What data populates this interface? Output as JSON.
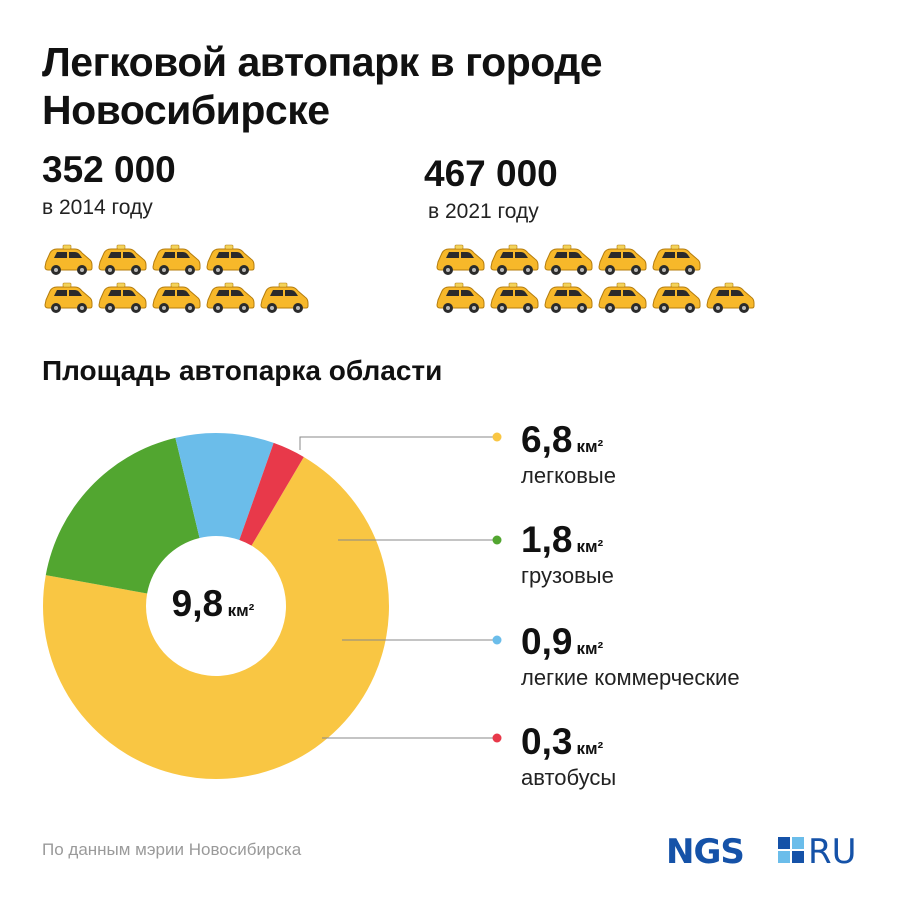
{
  "header": {
    "title": "Легковой автопарк в городе Новосибирске"
  },
  "stats": [
    {
      "value": "352 000",
      "caption": "в 2014 году"
    },
    {
      "value": "467 000",
      "caption": "в 2021 году"
    }
  ],
  "icons": {
    "car": "car-icon"
  },
  "section": {
    "title": "Площадь автопарка области"
  },
  "center": {
    "value": "9,8",
    "unit": "км²"
  },
  "chart_data": {
    "type": "pie",
    "title": "Площадь автопарка области",
    "unit": "км²",
    "total": 9.8,
    "series": [
      {
        "name": "легковые",
        "value": 6.8,
        "label": "6,8",
        "color": "#f9c643"
      },
      {
        "name": "грузовые",
        "value": 1.8,
        "label": "1,8",
        "color": "#52a630"
      },
      {
        "name": "легкие коммерческие",
        "value": 0.9,
        "label": "0,9",
        "color": "#6bbdea"
      },
      {
        "name": "автобусы",
        "value": 0.3,
        "label": "0,3",
        "color": "#e8394a"
      }
    ]
  },
  "footer": {
    "source": "По данным мэрии Новосибирска",
    "logo_left": "NGS",
    "logo_right": "RU"
  },
  "colors": {
    "brand": "#1552a8",
    "car_body": "#f7b82a",
    "car_dark": "#2b2b2b"
  }
}
